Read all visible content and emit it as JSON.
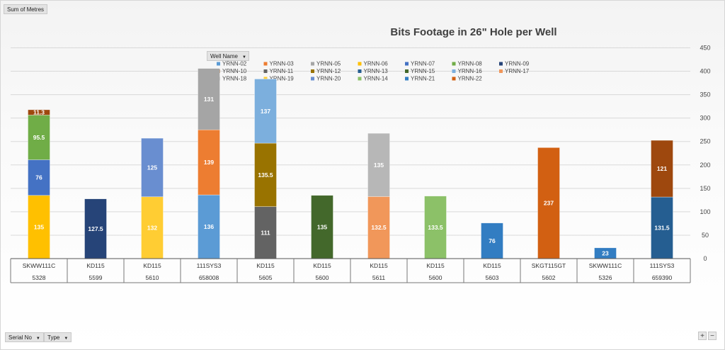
{
  "pivot": {
    "value_field": "Sum of Metres",
    "legend_field": "Well Name",
    "row_fields": [
      "Serial No",
      "Type"
    ],
    "zoom_in": "+",
    "zoom_out": "−"
  },
  "colors": {
    "YRNN-02": "#5b9bd5",
    "YRNN-03": "#ed7d31",
    "YRNN-05": "#a5a5a5",
    "YRNN-06": "#ffc000",
    "YRNN-07": "#4472c4",
    "YRNN-08": "#70ad47",
    "YRNN-09": "#264478",
    "YRNN-10": "#9e480e",
    "YRNN-11": "#636363",
    "YRNN-12": "#997300",
    "YRNN-13": "#255e91",
    "YRNN-15": "#43682b",
    "YRNN-16": "#7cafdd",
    "YRNN-17": "#f1975a",
    "YRNN-18": "#b7b7b7",
    "YRNN-19": "#ffcd33",
    "YRNN-20": "#698ed0",
    "YRNN-14": "#8cc168",
    "YRNN-21": "#327dc2",
    "YRNN-22": "#d26012"
  },
  "chart_data": {
    "type": "bar",
    "stacked": true,
    "title": "Bits Footage in 26\" Hole per Well",
    "ylim": [
      0,
      450
    ],
    "yticks": [
      "0",
      "50",
      "100",
      "150",
      "200",
      "250",
      "300",
      "350",
      "400",
      "450"
    ],
    "grid": true,
    "legend_position": "top",
    "legend": [
      "YRNN-02",
      "YRNN-03",
      "YRNN-05",
      "YRNN-06",
      "YRNN-07",
      "YRNN-08",
      "YRNN-09",
      "YRNN-10",
      "YRNN-11",
      "YRNN-12",
      "YRNN-13",
      "YRNN-15",
      "YRNN-16",
      "YRNN-17",
      "YRNN-18",
      "YRNN-19",
      "YRNN-20",
      "YRNN-14",
      "YRNN-21",
      "YRNN-22"
    ],
    "categories": [
      {
        "type": "SKWW111C",
        "serial": "5328",
        "segments": [
          {
            "series": "YRNN-06",
            "value": 135,
            "label": "135"
          },
          {
            "series": "YRNN-07",
            "value": 76,
            "label": "76"
          },
          {
            "series": "YRNN-08",
            "value": 95.5,
            "label": "95.5"
          },
          {
            "series": "YRNN-10",
            "value": 11.3,
            "label": "11.3"
          }
        ]
      },
      {
        "type": "KD115",
        "serial": "5599",
        "segments": [
          {
            "series": "YRNN-09",
            "value": 127.5,
            "label": "127.5"
          }
        ]
      },
      {
        "type": "KD115",
        "serial": "5610",
        "segments": [
          {
            "series": "YRNN-19",
            "value": 132,
            "label": "132"
          },
          {
            "series": "YRNN-20",
            "value": 125,
            "label": "125"
          }
        ]
      },
      {
        "type": "111SYS3",
        "serial": "658008",
        "segments": [
          {
            "series": "YRNN-02",
            "value": 136,
            "label": "136"
          },
          {
            "series": "YRNN-03",
            "value": 139,
            "label": "139"
          },
          {
            "series": "YRNN-05",
            "value": 131,
            "label": "131"
          }
        ]
      },
      {
        "type": "KD115",
        "serial": "5605",
        "segments": [
          {
            "series": "YRNN-11",
            "value": 111,
            "label": "111"
          },
          {
            "series": "YRNN-12",
            "value": 135.5,
            "label": "135.5"
          },
          {
            "series": "YRNN-16",
            "value": 137,
            "label": "137"
          }
        ]
      },
      {
        "type": "KD115",
        "serial": "5600",
        "segments": [
          {
            "series": "YRNN-15",
            "value": 135,
            "label": "135"
          }
        ]
      },
      {
        "type": "KD115",
        "serial": "5611",
        "segments": [
          {
            "series": "YRNN-17",
            "value": 132.5,
            "label": "132.5"
          },
          {
            "series": "YRNN-18",
            "value": 135,
            "label": "135"
          }
        ]
      },
      {
        "type": "KD115",
        "serial": "5600",
        "segments": [
          {
            "series": "YRNN-14",
            "value": 133.5,
            "label": "133.5"
          }
        ]
      },
      {
        "type": "KD115",
        "serial": "5603",
        "segments": [
          {
            "series": "YRNN-21",
            "value": 76,
            "label": "76"
          }
        ]
      },
      {
        "type": "SKGT115GT",
        "serial": "5602",
        "segments": [
          {
            "series": "YRNN-22",
            "value": 237,
            "label": "237"
          }
        ]
      },
      {
        "type": "SKWW111C",
        "serial": "5326",
        "segments": [
          {
            "series": "YRNN-21",
            "value": 23,
            "label": "23"
          }
        ]
      },
      {
        "type": "111SYS3",
        "serial": "659390",
        "segments": [
          {
            "series": "YRNN-13",
            "value": 131.5,
            "label": "131.5"
          },
          {
            "series": "YRNN-10",
            "value": 121,
            "label": "121"
          }
        ]
      }
    ]
  }
}
